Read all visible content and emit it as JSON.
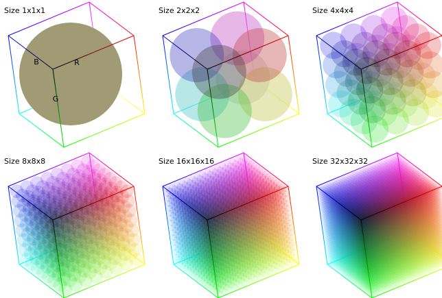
{
  "figure": {
    "panels": [
      {
        "title": "Size 1x1x1",
        "n": 1
      },
      {
        "title": "Size 2x2x2",
        "n": 2
      },
      {
        "title": "Size 4x4x4",
        "n": 4
      },
      {
        "title": "Size 8x8x8",
        "n": 8
      },
      {
        "title": "Size 16x16x16",
        "n": 16
      },
      {
        "title": "Size 32x32x32",
        "n": 32
      }
    ],
    "axis_labels": {
      "red": "R",
      "green": "G",
      "blue": "B"
    },
    "single_color": "#a09b74"
  }
}
